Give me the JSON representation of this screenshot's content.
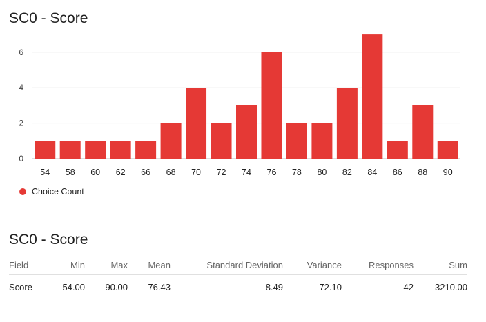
{
  "chart_data": {
    "type": "bar",
    "title": "SC0 - Score",
    "categories": [
      "54",
      "58",
      "60",
      "62",
      "66",
      "68",
      "70",
      "72",
      "74",
      "76",
      "78",
      "80",
      "82",
      "84",
      "86",
      "88",
      "90"
    ],
    "values": [
      1,
      1,
      1,
      1,
      1,
      2,
      4,
      2,
      3,
      6,
      2,
      2,
      4,
      7,
      1,
      3,
      1
    ],
    "series": [
      {
        "name": "Choice Count",
        "color": "#e53935"
      }
    ],
    "y_ticks": [
      "0",
      "2",
      "4",
      "6"
    ],
    "ylim": [
      0,
      7
    ],
    "xlabel": "",
    "ylabel": "",
    "grid": true,
    "legend_position": "bottom-left"
  },
  "legend": {
    "label": "Choice Count"
  },
  "table": {
    "title": "SC0 - Score",
    "headers": [
      "Field",
      "Min",
      "Max",
      "Mean",
      "Standard Deviation",
      "Variance",
      "Responses",
      "Sum"
    ],
    "row": [
      "Score",
      "54.00",
      "90.00",
      "76.43",
      "8.49",
      "72.10",
      "42",
      "3210.00"
    ]
  }
}
